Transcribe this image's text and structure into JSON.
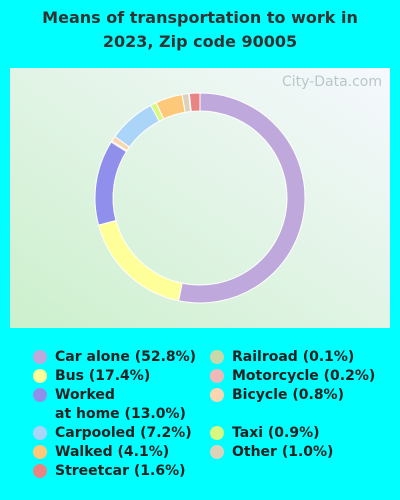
{
  "chart_data": {
    "type": "donut",
    "title": "Means of transportation to work in\n2023, Zip code 90005",
    "watermark": "City-Data.com",
    "categories": [
      "Car alone (52.8%)",
      "Bus (17.4%)",
      "Worked\nat home (13.0%)",
      "Motorcycle (0.2%)",
      "Bicycle (0.8%)",
      "Carpooled (7.2%)",
      "Taxi (0.9%)",
      "Walked (4.1%)",
      "Other (1.0%)",
      "Railroad (0.1%)",
      "Streetcar (1.6%)"
    ],
    "values": [
      52.8,
      17.4,
      13.0,
      0.2,
      0.8,
      7.2,
      0.9,
      4.1,
      1.0,
      0.1,
      1.6
    ],
    "colors": [
      "#bfa8dc",
      "#ffff99",
      "#9090ec",
      "#f2b8b8",
      "#fad6b0",
      "#aad4f8",
      "#d8f880",
      "#fec87a",
      "#dcd2ba",
      "#c8d8a8",
      "#e88484"
    ]
  }
}
